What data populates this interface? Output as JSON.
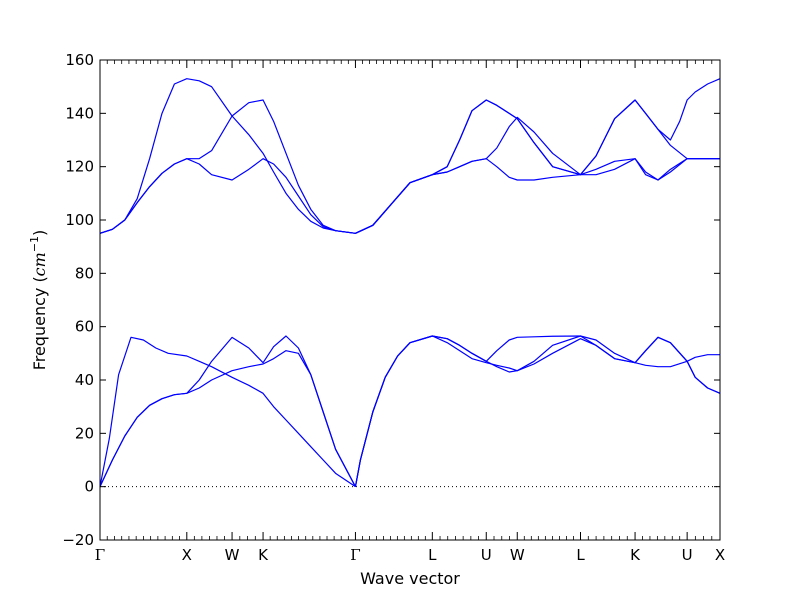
{
  "chart_data": {
    "type": "line",
    "title": "",
    "xlabel": "Wave vector",
    "ylabel": {
      "prefix": "Frequency (",
      "unit_base": "cm",
      "unit_exp": "−1",
      "suffix": ")"
    },
    "ylim": [
      -20,
      160
    ],
    "yticks": [
      -20,
      0,
      20,
      40,
      60,
      80,
      100,
      120,
      140,
      160
    ],
    "xlim": [
      0,
      100
    ],
    "high_symmetry_points": [
      {
        "label": "Γ",
        "x": 0
      },
      {
        "label": "X",
        "x": 14
      },
      {
        "label": "W",
        "x": 21.3
      },
      {
        "label": "K",
        "x": 26.3
      },
      {
        "label": "Γ",
        "x": 41.2
      },
      {
        "label": "L",
        "x": 53.6
      },
      {
        "label": "U",
        "x": 62.3
      },
      {
        "label": "W",
        "x": 67.3
      },
      {
        "label": "L",
        "x": 77.5
      },
      {
        "label": "K",
        "x": 86.3
      },
      {
        "label": "U",
        "x": 94.7
      },
      {
        "label": "X",
        "x": 100
      }
    ],
    "zero_line": {
      "y": 0,
      "style": "dotted"
    },
    "line_color": "#0000ff",
    "series": [
      {
        "x": [
          0,
          2,
          4,
          6,
          8,
          10,
          12,
          14,
          16,
          18,
          21.3,
          24,
          26.3,
          28,
          30,
          32,
          34,
          36,
          38,
          41.2
        ],
        "values": [
          95,
          96.5,
          100,
          108,
          123,
          140,
          151,
          153,
          152.2,
          150,
          139,
          132,
          125,
          118,
          110,
          104,
          99.5,
          97,
          96,
          95
        ]
      },
      {
        "x": [
          0,
          2,
          4,
          6,
          8,
          10,
          12,
          14,
          16,
          18,
          21.3,
          24,
          26.3,
          28,
          30,
          32,
          34,
          36,
          38,
          41.2
        ],
        "values": [
          95,
          96.5,
          100,
          106.5,
          112.5,
          117.5,
          121,
          123,
          123,
          126,
          139,
          144,
          145,
          137,
          125,
          113,
          104,
          98,
          96,
          95
        ]
      },
      {
        "x": [
          0,
          2,
          4,
          6,
          8,
          10,
          12,
          14,
          16,
          18,
          21.3,
          24,
          26.3,
          28,
          30,
          32,
          34,
          36,
          38,
          41.2
        ],
        "values": [
          95,
          96.5,
          100,
          106.5,
          112.5,
          117.5,
          121,
          123,
          121,
          117,
          115,
          119,
          123,
          121,
          116,
          109,
          102,
          97.5,
          96,
          95
        ]
      },
      {
        "x": [
          41.2,
          44,
          47,
          50,
          53.6,
          56,
          58,
          60,
          62.3,
          64,
          66,
          67.3,
          70,
          73,
          77.5,
          80,
          83,
          86.3,
          88,
          90,
          92,
          94.7,
          96,
          98,
          100
        ],
        "values": [
          95,
          98,
          106,
          114,
          117,
          118,
          120,
          122,
          123,
          127,
          135,
          138.5,
          133,
          125,
          117,
          119,
          122,
          123,
          118,
          115,
          119,
          123,
          123,
          123,
          123
        ]
      },
      {
        "x": [
          41.2,
          44,
          47,
          50,
          53.6,
          56,
          58,
          60,
          62.3,
          64,
          66,
          67.3,
          70,
          73,
          77.5,
          80,
          83,
          86.3,
          88,
          90,
          92,
          94.7,
          96,
          98,
          100
        ],
        "values": [
          95,
          98,
          106,
          114,
          117,
          118,
          120,
          122,
          123,
          120,
          116,
          115,
          115,
          116,
          117,
          117,
          119,
          123,
          117,
          115,
          118,
          123,
          123,
          123,
          123
        ]
      },
      {
        "x": [
          41.2,
          44,
          47,
          50,
          53.6,
          56,
          58,
          60,
          62.3,
          64,
          66,
          67.3,
          70,
          73,
          77.5,
          80,
          83,
          86.3,
          88,
          90,
          92,
          94.7,
          96,
          98,
          100
        ],
        "values": [
          95,
          98,
          106,
          114,
          117,
          120,
          130,
          141,
          145,
          143,
          140,
          138,
          129,
          120,
          117,
          124,
          138,
          145,
          140,
          134,
          128,
          123,
          123,
          123,
          123
        ]
      },
      {
        "x": [
          41.2,
          44,
          47,
          50,
          53.6,
          56,
          58,
          60,
          62.3,
          64,
          66,
          67.3,
          70,
          73,
          77.5,
          80,
          83,
          86.3,
          88,
          90,
          92,
          93.5,
          94.7,
          96,
          98,
          100
        ],
        "values": [
          95,
          98,
          106,
          114,
          117,
          120,
          130,
          141,
          145,
          143,
          140,
          138,
          129,
          120,
          117,
          124,
          138,
          145,
          140,
          134,
          130,
          137,
          145,
          148,
          151,
          153
        ]
      },
      {
        "x": [
          0,
          1.5,
          3,
          5,
          7,
          9,
          11,
          14,
          16,
          18,
          21.3,
          24,
          26.3,
          28,
          30,
          32,
          34,
          36,
          38,
          41.2
        ],
        "values": [
          0,
          18,
          42,
          56,
          55,
          52,
          50,
          49,
          47,
          45,
          41,
          38,
          35,
          30,
          25,
          20,
          15,
          10,
          5,
          0
        ]
      },
      {
        "x": [
          0,
          2,
          4,
          6,
          8,
          10,
          12,
          14,
          16,
          18,
          21.3,
          24,
          26.3,
          28,
          30,
          32,
          34,
          36,
          38,
          41.2
        ],
        "values": [
          0,
          10,
          19,
          26,
          30.5,
          33,
          34.5,
          35,
          40,
          47,
          56,
          52,
          46.5,
          52.5,
          56.5,
          52,
          42,
          28,
          14,
          0
        ]
      },
      {
        "x": [
          0,
          2,
          4,
          6,
          8,
          10,
          12,
          14,
          16,
          18,
          21.3,
          24,
          26.3,
          28,
          30,
          32,
          34,
          36,
          38,
          41.2
        ],
        "values": [
          0,
          10,
          19,
          26,
          30.5,
          33,
          34.5,
          35,
          37,
          40,
          43.5,
          45,
          46,
          48,
          51,
          50,
          42,
          28,
          14,
          0
        ]
      },
      {
        "x": [
          41.2,
          42,
          44,
          46,
          48,
          50,
          53.6,
          56,
          58,
          60,
          62.3,
          64,
          66,
          67.3,
          70,
          73,
          77.5,
          80,
          83,
          86.3,
          88,
          90,
          92,
          94.7,
          96,
          98,
          100
        ],
        "values": [
          0,
          10,
          28,
          41,
          49,
          54,
          56.5,
          54,
          51,
          48,
          46.5,
          45.5,
          44.5,
          43.5,
          47,
          53,
          56.5,
          53,
          48,
          46.5,
          45.5,
          45,
          45,
          47,
          48.5,
          49.5,
          49.5
        ]
      },
      {
        "x": [
          41.2,
          42,
          44,
          46,
          48,
          50,
          53.6,
          56,
          58,
          60,
          62.3,
          64,
          66,
          67.3,
          70,
          73,
          77.5,
          80,
          83,
          86.3,
          88,
          90,
          92,
          94.7,
          96,
          98,
          100
        ],
        "values": [
          0,
          10,
          28,
          41,
          49,
          54,
          56.5,
          55.5,
          53,
          50,
          47,
          45,
          43,
          43.5,
          46,
          50,
          55.5,
          53,
          48,
          46.5,
          51,
          56,
          54,
          47,
          41,
          37,
          35
        ]
      },
      {
        "x": [
          41.2,
          42,
          44,
          46,
          48,
          50,
          53.6,
          56,
          58,
          60,
          62.3,
          64,
          66,
          67.3,
          70,
          73,
          77.5,
          80,
          83,
          86.3,
          88,
          90,
          92,
          94.7,
          96,
          98,
          100
        ],
        "values": [
          0,
          10,
          28,
          41,
          49,
          54,
          56.5,
          55.5,
          53,
          50,
          47,
          51,
          55,
          56,
          56.2,
          56.4,
          56.5,
          55,
          50,
          46.5,
          51,
          56,
          54,
          47,
          41,
          37,
          35
        ]
      }
    ]
  }
}
